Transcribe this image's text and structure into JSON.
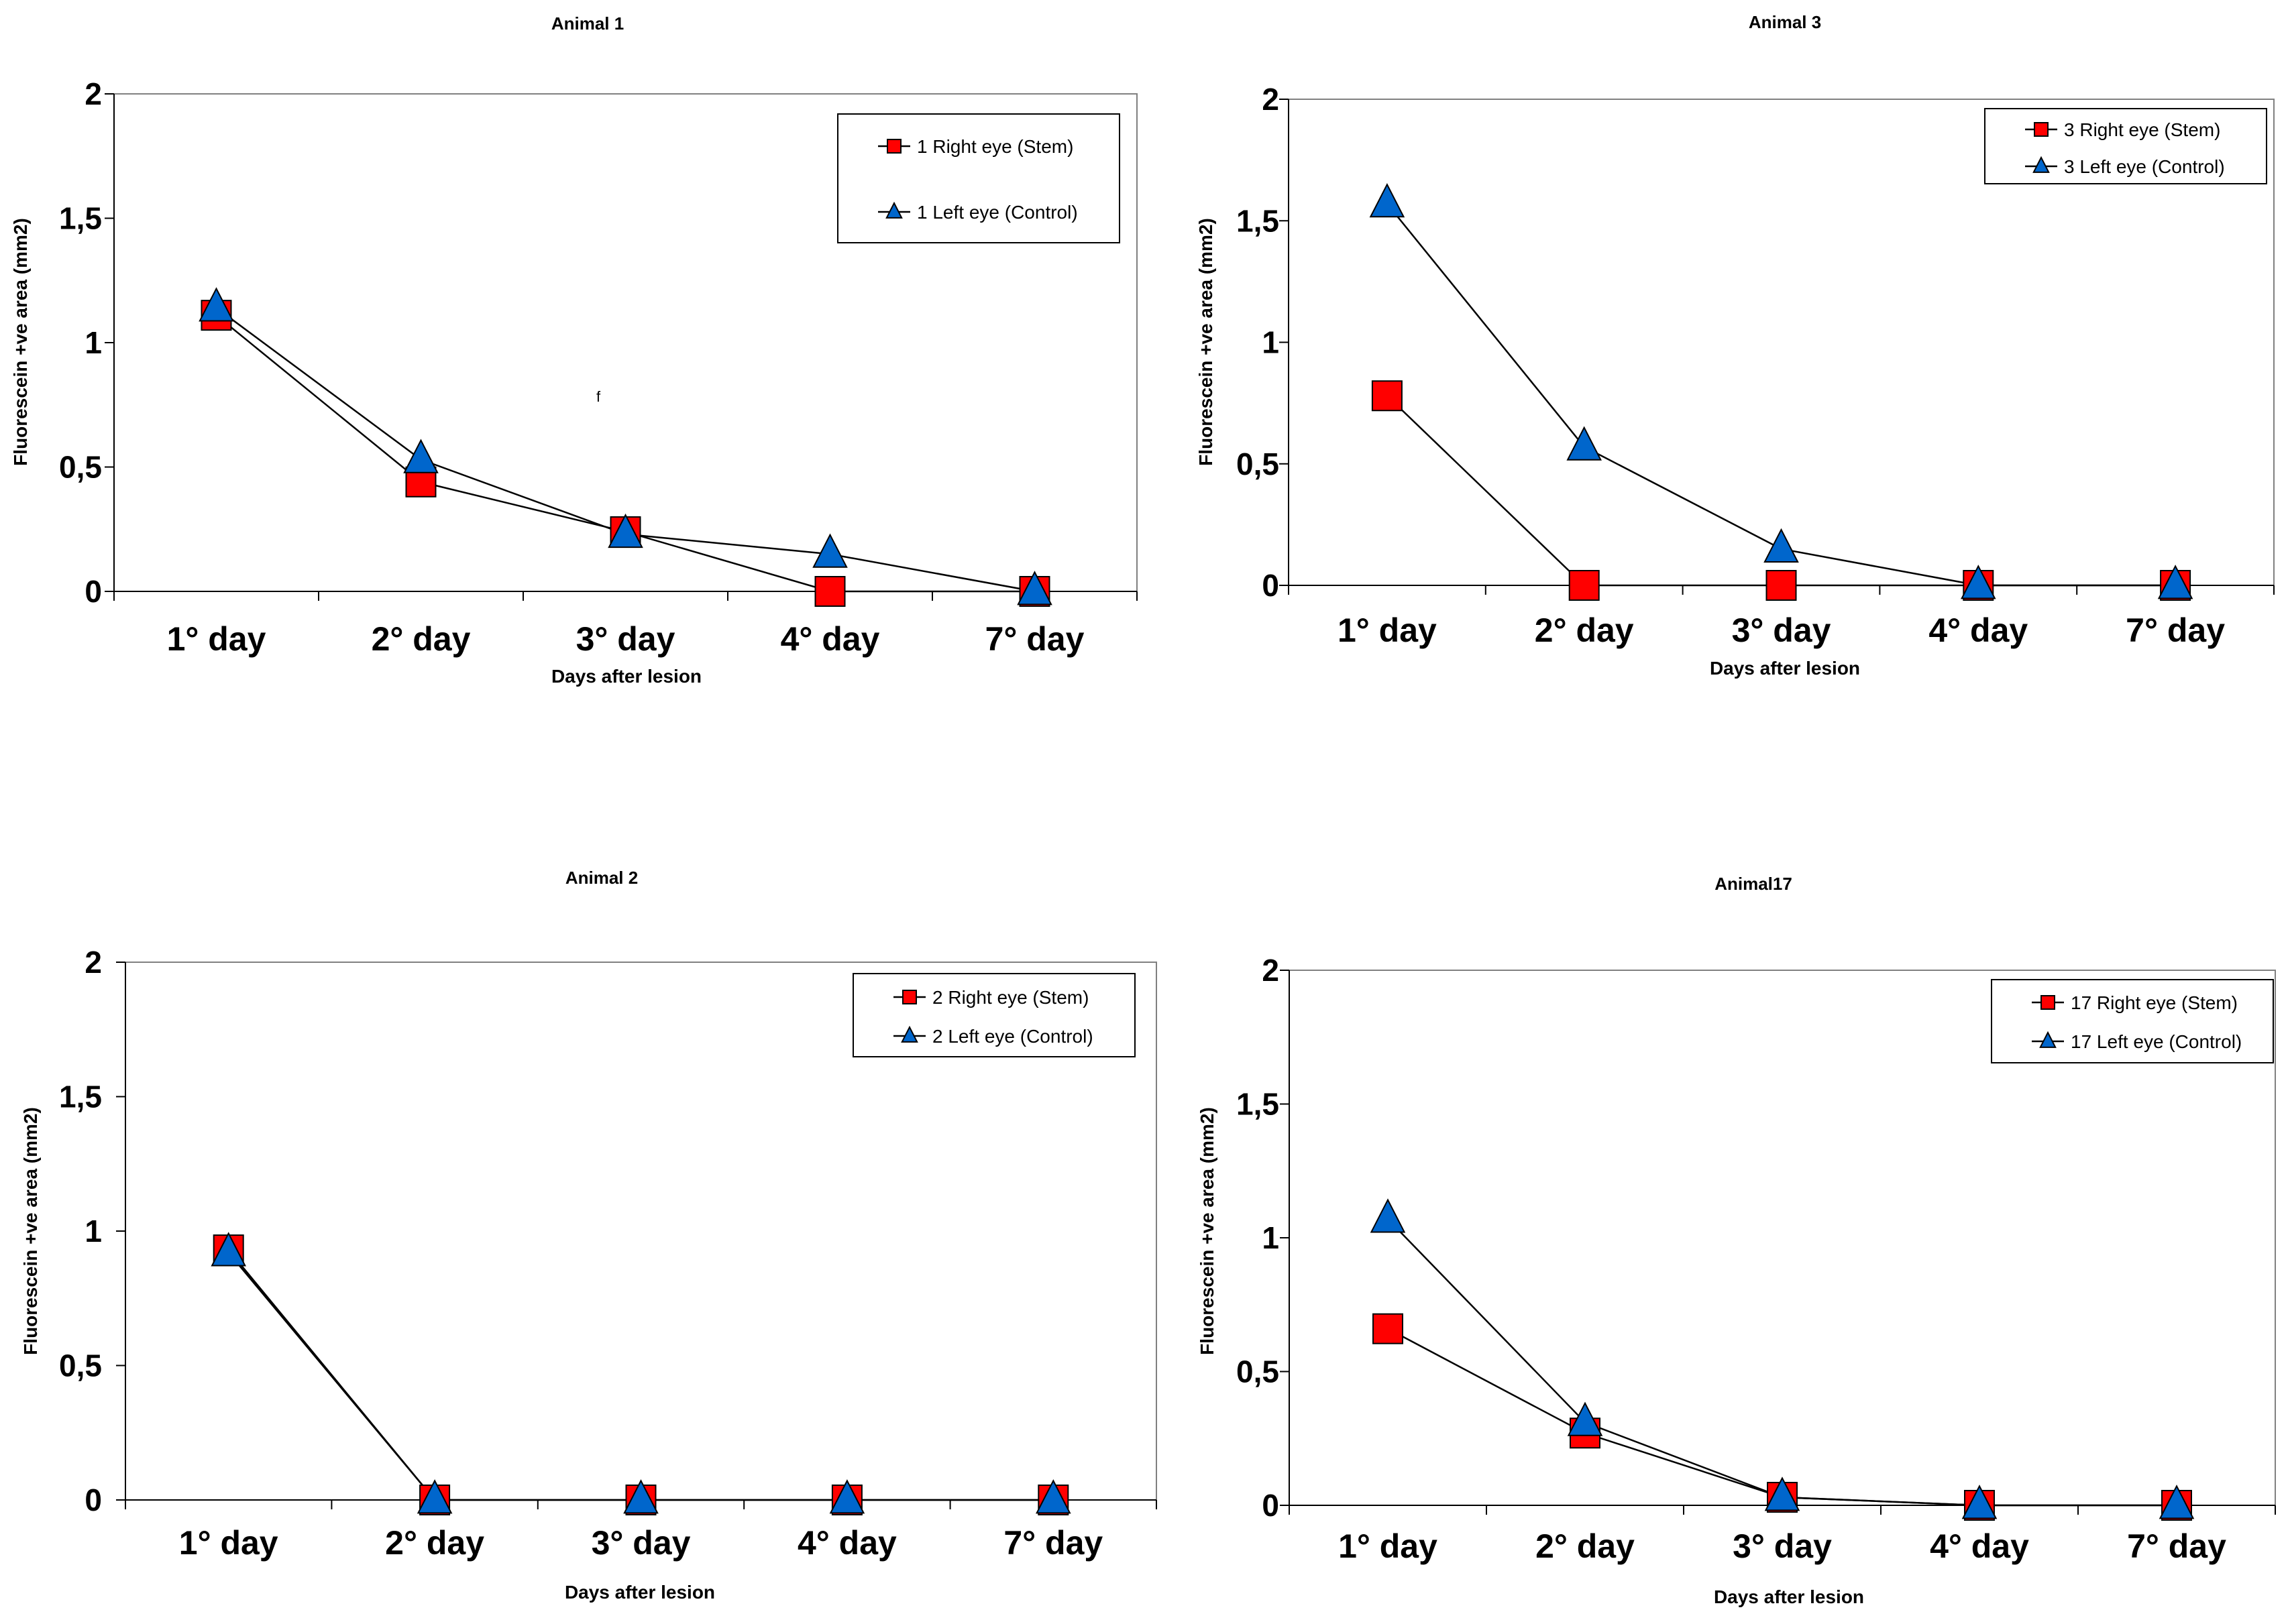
{
  "chart_data": [
    {
      "type": "line",
      "title": "Animal 1",
      "xlabel": "Days after lesion",
      "ylabel": "Fluorescein +ve area (mm2)",
      "categories": [
        "1° day",
        "2° day",
        "3° day",
        "4° day",
        "7° day"
      ],
      "ylim": [
        0,
        2
      ],
      "yticks": [
        "0",
        "0,5",
        "1",
        "1,5",
        "2"
      ],
      "grid": false,
      "legend_position": "top-right",
      "annotation": "f",
      "series": [
        {
          "name": "1 Right eye (Stem)",
          "marker": "square",
          "color": "#ff0000",
          "values": [
            1.11,
            0.44,
            0.24,
            0.0,
            0.0
          ]
        },
        {
          "name": "1 Left eye (Control)",
          "marker": "triangle",
          "color": "#0066cc",
          "values": [
            1.14,
            0.53,
            0.23,
            0.15,
            0.0
          ]
        }
      ]
    },
    {
      "type": "line",
      "title": "Animal 3",
      "xlabel": "Days after lesion",
      "ylabel": "Fluorescein +ve area (mm2)",
      "categories": [
        "1° day",
        "2° day",
        "3° day",
        "4° day",
        "7° day"
      ],
      "ylim": [
        0,
        2
      ],
      "yticks": [
        "0",
        "0,5",
        "1",
        "1,5",
        "2"
      ],
      "grid": false,
      "legend_position": "top-right",
      "series": [
        {
          "name": "3 Right eye (Stem)",
          "marker": "square",
          "color": "#ff0000",
          "values": [
            0.78,
            0.0,
            0.0,
            0.0,
            0.0
          ]
        },
        {
          "name": "3 Left eye (Control)",
          "marker": "triangle",
          "color": "#0066cc",
          "values": [
            1.57,
            0.57,
            0.15,
            0.0,
            0.0
          ]
        }
      ]
    },
    {
      "type": "line",
      "title": "Animal 2",
      "xlabel": "Days after lesion",
      "ylabel": "Fluorescein +ve area (mm2)",
      "categories": [
        "1° day",
        "2° day",
        "3° day",
        "4° day",
        "7° day"
      ],
      "ylim": [
        0,
        2
      ],
      "yticks": [
        "0",
        "0,5",
        "1",
        "1,5",
        "2"
      ],
      "grid": false,
      "legend_position": "top-right",
      "series": [
        {
          "name": "2 Right eye (Stem)",
          "marker": "square",
          "color": "#ff0000",
          "values": [
            0.93,
            0.0,
            0.0,
            0.0,
            0.0
          ]
        },
        {
          "name": "2 Left eye (Control)",
          "marker": "triangle",
          "color": "#0066cc",
          "values": [
            0.92,
            0.0,
            0.0,
            0.0,
            0.0
          ]
        }
      ]
    },
    {
      "type": "line",
      "title": "Animal17",
      "xlabel": "Days after lesion",
      "ylabel": "Fluorescein +ve area (mm2)",
      "categories": [
        "1° day",
        "2° day",
        "3° day",
        "4° day",
        "7° day"
      ],
      "ylim": [
        0,
        2
      ],
      "yticks": [
        "0",
        "0,5",
        "1",
        "1,5",
        "2"
      ],
      "grid": false,
      "legend_position": "top-right",
      "series": [
        {
          "name": "17 Right eye (Stem)",
          "marker": "square",
          "color": "#ff0000",
          "values": [
            0.66,
            0.27,
            0.03,
            0.0,
            0.0
          ]
        },
        {
          "name": "17 Left eye (Control)",
          "marker": "triangle",
          "color": "#0066cc",
          "values": [
            1.07,
            0.31,
            0.03,
            0.0,
            0.0
          ]
        }
      ]
    }
  ]
}
